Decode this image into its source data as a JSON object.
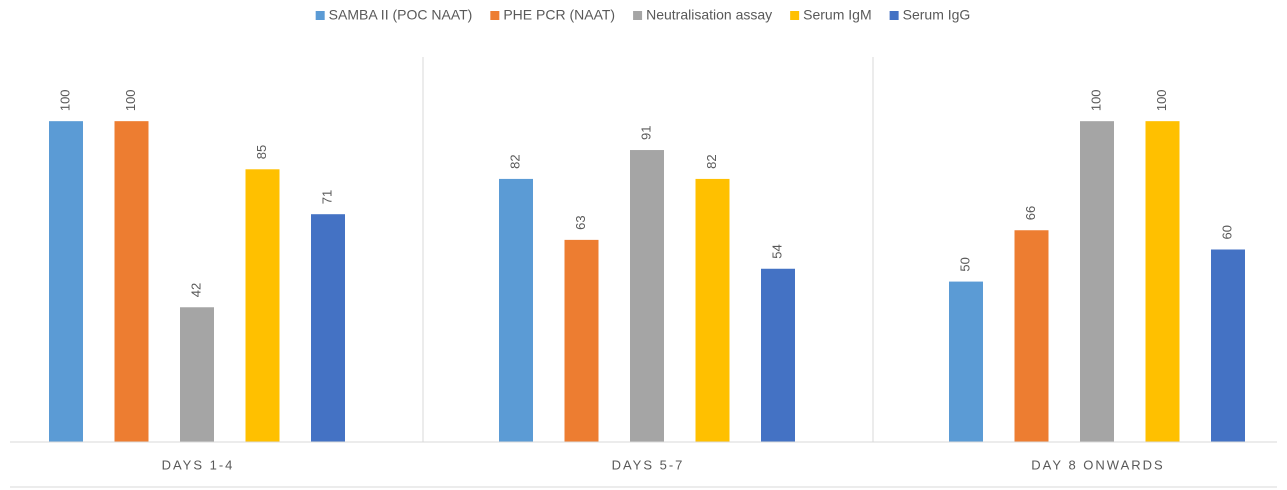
{
  "chart_data": {
    "type": "bar",
    "categories": [
      "DAYS 1-4",
      "DAYS 5-7",
      "DAY 8 ONWARDS"
    ],
    "series": [
      {
        "name": "SAMBA II (POC NAAT)",
        "color": "#5b9bd5",
        "values": [
          100,
          82,
          50
        ]
      },
      {
        "name": "PHE PCR (NAAT)",
        "color": "#ed7d31",
        "values": [
          100,
          63,
          66
        ]
      },
      {
        "name": "Neutralisation assay",
        "color": "#a5a5a5",
        "values": [
          42,
          91,
          100
        ]
      },
      {
        "name": "Serum IgM",
        "color": "#ffc000",
        "values": [
          85,
          82,
          100
        ]
      },
      {
        "name": "Serum IgG",
        "color": "#4472c4",
        "values": [
          71,
          54,
          60
        ]
      }
    ],
    "ylim": [
      0,
      120
    ],
    "legend": "top"
  }
}
